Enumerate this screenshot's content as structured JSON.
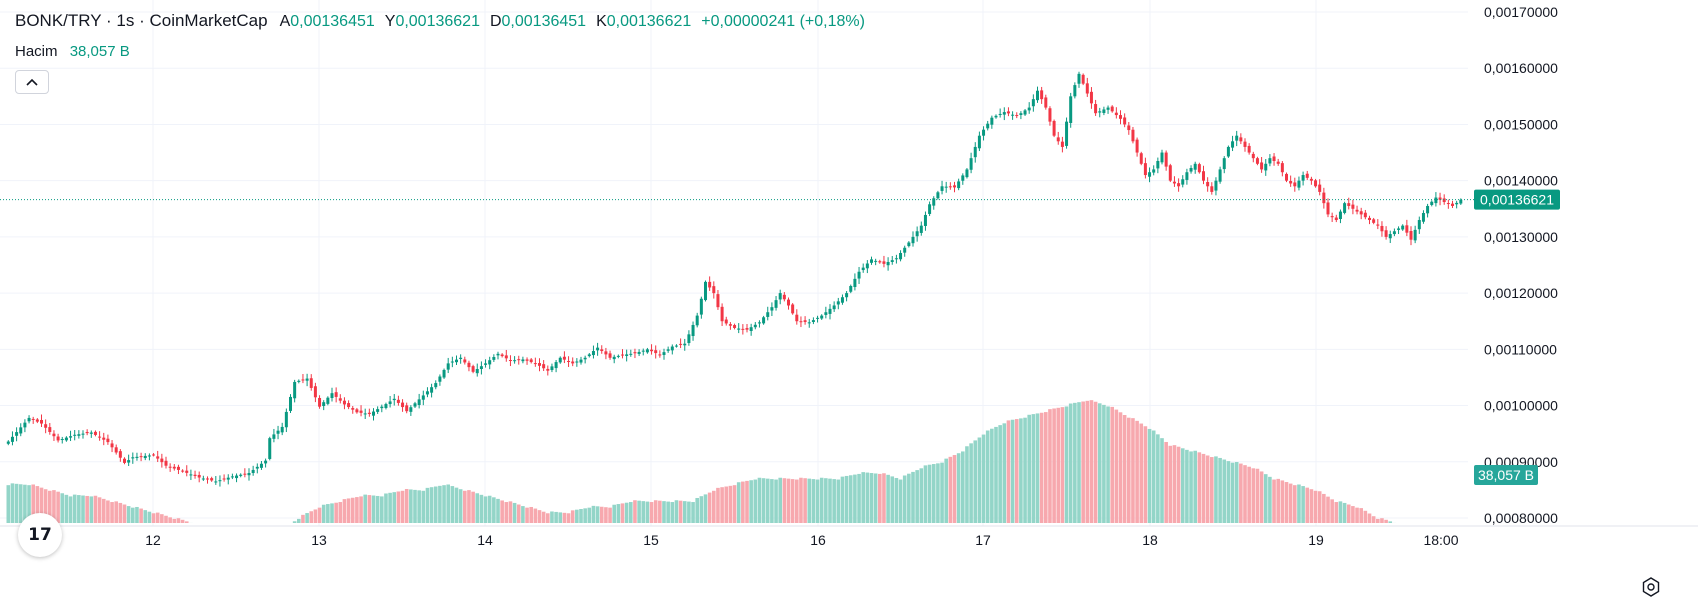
{
  "header": {
    "symbol": "BONK/TRY · 1s · CoinMarketCap",
    "open_label": "A",
    "open_value": "0,00136451",
    "high_label": "Y",
    "high_value": "0,00136621",
    "low_label": "D",
    "low_value": "0,00136451",
    "close_label": "K",
    "close_value": "0,00136621",
    "change": "+0,00000241 (+0,18%)"
  },
  "volume_legend": {
    "label": "Hacim",
    "value": "38,057 B"
  },
  "price_badge": "0,00136621",
  "volume_badge": "38,057 B",
  "logo_text": "17",
  "colors": {
    "up": "#089981",
    "down": "#f23645",
    "vol_up": "#93d5c8",
    "vol_down": "#f7a8ae",
    "price_line": "#089981"
  },
  "chart_data": {
    "type": "candlestick",
    "y_ticks": [
      "0,00170000",
      "0,00160000",
      "0,00150000",
      "0,00140000",
      "0,00130000",
      "0,00120000",
      "0,00110000",
      "0,00100000",
      "0,00090000",
      "0,00080000"
    ],
    "ylim": [
      0.0008,
      0.0017
    ],
    "x_ticks": [
      "12",
      "13",
      "14",
      "15",
      "16",
      "17",
      "18",
      "19",
      "18:00"
    ],
    "last_price": 0.00136621,
    "volume_last": "38,057 B",
    "close_anchors": [
      [
        0,
        0.000936
      ],
      [
        5,
        0.000978
      ],
      [
        8,
        0.000968
      ],
      [
        12,
        0.000938
      ],
      [
        16,
        0.000948
      ],
      [
        20,
        0.000952
      ],
      [
        24,
        0.000935
      ],
      [
        28,
        0.000898
      ],
      [
        30,
        0.000908
      ],
      [
        35,
        0.000912
      ],
      [
        38,
        0.000893
      ],
      [
        42,
        0.000883
      ],
      [
        46,
        0.000872
      ],
      [
        50,
        0.000865
      ],
      [
        54,
        0.000874
      ],
      [
        58,
        0.00088
      ],
      [
        62,
        0.000902
      ],
      [
        63,
        0.000942
      ],
      [
        66,
        0.000962
      ],
      [
        69,
        0.001042
      ],
      [
        72,
        0.001048
      ],
      [
        75,
        0.000998
      ],
      [
        78,
        0.001022
      ],
      [
        81,
        0.001002
      ],
      [
        84,
        0.000988
      ],
      [
        87,
        0.000985
      ],
      [
        90,
        0.000998
      ],
      [
        93,
        0.001012
      ],
      [
        96,
        0.00099
      ],
      [
        100,
        0.001018
      ],
      [
        103,
        0.00104
      ],
      [
        106,
        0.001075
      ],
      [
        109,
        0.001085
      ],
      [
        112,
        0.00106
      ],
      [
        115,
        0.001075
      ],
      [
        118,
        0.001092
      ],
      [
        121,
        0.00108
      ],
      [
        124,
        0.001082
      ],
      [
        127,
        0.001075
      ],
      [
        130,
        0.001062
      ],
      [
        133,
        0.001085
      ],
      [
        136,
        0.001075
      ],
      [
        139,
        0.001085
      ],
      [
        142,
        0.001103
      ],
      [
        145,
        0.001085
      ],
      [
        148,
        0.00109
      ],
      [
        151,
        0.001093
      ],
      [
        154,
        0.0011
      ],
      [
        157,
        0.00109
      ],
      [
        160,
        0.001105
      ],
      [
        163,
        0.00111
      ],
      [
        166,
        0.00116
      ],
      [
        168,
        0.00122
      ],
      [
        170,
        0.0012
      ],
      [
        172,
        0.00115
      ],
      [
        175,
        0.001138
      ],
      [
        178,
        0.001135
      ],
      [
        181,
        0.001148
      ],
      [
        184,
        0.001175
      ],
      [
        186,
        0.0012
      ],
      [
        188,
        0.001178
      ],
      [
        190,
        0.00115
      ],
      [
        193,
        0.001148
      ],
      [
        196,
        0.00116
      ],
      [
        199,
        0.001178
      ],
      [
        202,
        0.0012
      ],
      [
        205,
        0.001238
      ],
      [
        208,
        0.00126
      ],
      [
        211,
        0.001252
      ],
      [
        214,
        0.001262
      ],
      [
        217,
        0.00129
      ],
      [
        220,
        0.00132
      ],
      [
        222,
        0.001358
      ],
      [
        225,
        0.00139
      ],
      [
        228,
        0.001388
      ],
      [
        231,
        0.00142
      ],
      [
        234,
        0.00148
      ],
      [
        237,
        0.001512
      ],
      [
        240,
        0.001522
      ],
      [
        243,
        0.001515
      ],
      [
        246,
        0.00153
      ],
      [
        248,
        0.00156
      ],
      [
        250,
        0.00153
      ],
      [
        252,
        0.00148
      ],
      [
        254,
        0.00146
      ],
      [
        256,
        0.00155
      ],
      [
        258,
        0.00159
      ],
      [
        260,
        0.001555
      ],
      [
        262,
        0.00152
      ],
      [
        265,
        0.00153
      ],
      [
        268,
        0.00151
      ],
      [
        270,
        0.00149
      ],
      [
        272,
        0.00145
      ],
      [
        274,
        0.00141
      ],
      [
        276,
        0.00142
      ],
      [
        278,
        0.00145
      ],
      [
        280,
        0.0014
      ],
      [
        282,
        0.00139
      ],
      [
        284,
        0.001415
      ],
      [
        286,
        0.00143
      ],
      [
        288,
        0.0014
      ],
      [
        290,
        0.00138
      ],
      [
        292,
        0.00142
      ],
      [
        294,
        0.00146
      ],
      [
        296,
        0.00148
      ],
      [
        298,
        0.00146
      ],
      [
        300,
        0.00144
      ],
      [
        302,
        0.00142
      ],
      [
        304,
        0.00144
      ],
      [
        306,
        0.00143
      ],
      [
        308,
        0.0014
      ],
      [
        310,
        0.00139
      ],
      [
        312,
        0.00141
      ],
      [
        314,
        0.0014
      ],
      [
        316,
        0.00138
      ],
      [
        318,
        0.00134
      ],
      [
        320,
        0.00133
      ],
      [
        322,
        0.00136
      ],
      [
        324,
        0.00135
      ],
      [
        326,
        0.00134
      ],
      [
        328,
        0.00133
      ],
      [
        330,
        0.00132
      ],
      [
        332,
        0.0013
      ],
      [
        334,
        0.00131
      ],
      [
        336,
        0.00132
      ],
      [
        338,
        0.001295
      ],
      [
        340,
        0.00133
      ],
      [
        342,
        0.001355
      ],
      [
        344,
        0.00137
      ],
      [
        346,
        0.001362
      ],
      [
        348,
        0.001355
      ],
      [
        350,
        0.001366
      ]
    ],
    "volume_anchors": [
      [
        0,
        0.00086
      ],
      [
        5,
        0.00086
      ],
      [
        10,
        0.00085
      ],
      [
        15,
        0.00084
      ],
      [
        20,
        0.00084
      ],
      [
        25,
        0.00083
      ],
      [
        30,
        0.00082
      ],
      [
        35,
        0.00081
      ],
      [
        40,
        0.0008
      ],
      [
        45,
        0.00079
      ],
      [
        50,
        0.00078
      ],
      [
        55,
        0.00077
      ],
      [
        60,
        0.00077
      ],
      [
        62,
        0.00077
      ],
      [
        66,
        0.00078
      ],
      [
        70,
        0.0008
      ],
      [
        75,
        0.00082
      ],
      [
        80,
        0.00083
      ],
      [
        85,
        0.00084
      ],
      [
        90,
        0.00084
      ],
      [
        95,
        0.00085
      ],
      [
        100,
        0.00085
      ],
      [
        105,
        0.00086
      ],
      [
        110,
        0.00085
      ],
      [
        115,
        0.00084
      ],
      [
        120,
        0.00083
      ],
      [
        125,
        0.00082
      ],
      [
        130,
        0.00081
      ],
      [
        135,
        0.00081
      ],
      [
        140,
        0.00082
      ],
      [
        145,
        0.00082
      ],
      [
        150,
        0.00083
      ],
      [
        155,
        0.00083
      ],
      [
        160,
        0.00083
      ],
      [
        165,
        0.00083
      ],
      [
        170,
        0.00085
      ],
      [
        175,
        0.00086
      ],
      [
        180,
        0.00087
      ],
      [
        185,
        0.00087
      ],
      [
        190,
        0.00087
      ],
      [
        195,
        0.00087
      ],
      [
        200,
        0.00087
      ],
      [
        205,
        0.00088
      ],
      [
        210,
        0.00088
      ],
      [
        215,
        0.00087
      ],
      [
        220,
        0.00089
      ],
      [
        225,
        0.0009
      ],
      [
        230,
        0.00092
      ],
      [
        235,
        0.00095
      ],
      [
        240,
        0.00097
      ],
      [
        245,
        0.00098
      ],
      [
        250,
        0.00099
      ],
      [
        255,
        0.001
      ],
      [
        260,
        0.00101
      ],
      [
        265,
        0.001
      ],
      [
        270,
        0.00098
      ],
      [
        275,
        0.00096
      ],
      [
        280,
        0.00093
      ],
      [
        285,
        0.00092
      ],
      [
        290,
        0.00091
      ],
      [
        295,
        0.0009
      ],
      [
        300,
        0.00089
      ],
      [
        305,
        0.00087
      ],
      [
        310,
        0.00086
      ],
      [
        315,
        0.00085
      ],
      [
        320,
        0.00083
      ],
      [
        325,
        0.00082
      ],
      [
        330,
        0.0008
      ],
      [
        335,
        0.00079
      ],
      [
        340,
        0.00078
      ],
      [
        345,
        0.00077
      ],
      [
        350,
        0.00076
      ]
    ]
  }
}
